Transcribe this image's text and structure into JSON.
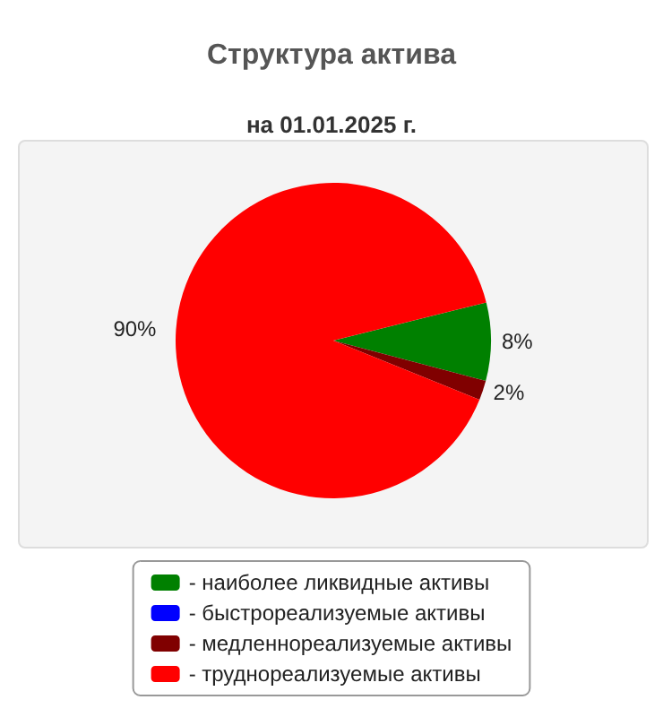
{
  "chart_data": {
    "type": "pie",
    "title": "Структура актива",
    "subtitle": "на 01.01.2025 г.",
    "categories": [
      "- наиболее ликвидные активы",
      "- быстрореализуемые активы",
      "- медленнореализуемые активы",
      "- труднореализуемые активы"
    ],
    "values": [
      8,
      0,
      2,
      90
    ],
    "colors": [
      "#008000",
      "#0000ff",
      "#800000",
      "#ff0000"
    ],
    "value_labels": [
      "8%",
      null,
      "2%",
      "90%"
    ],
    "legend": "bottom"
  }
}
